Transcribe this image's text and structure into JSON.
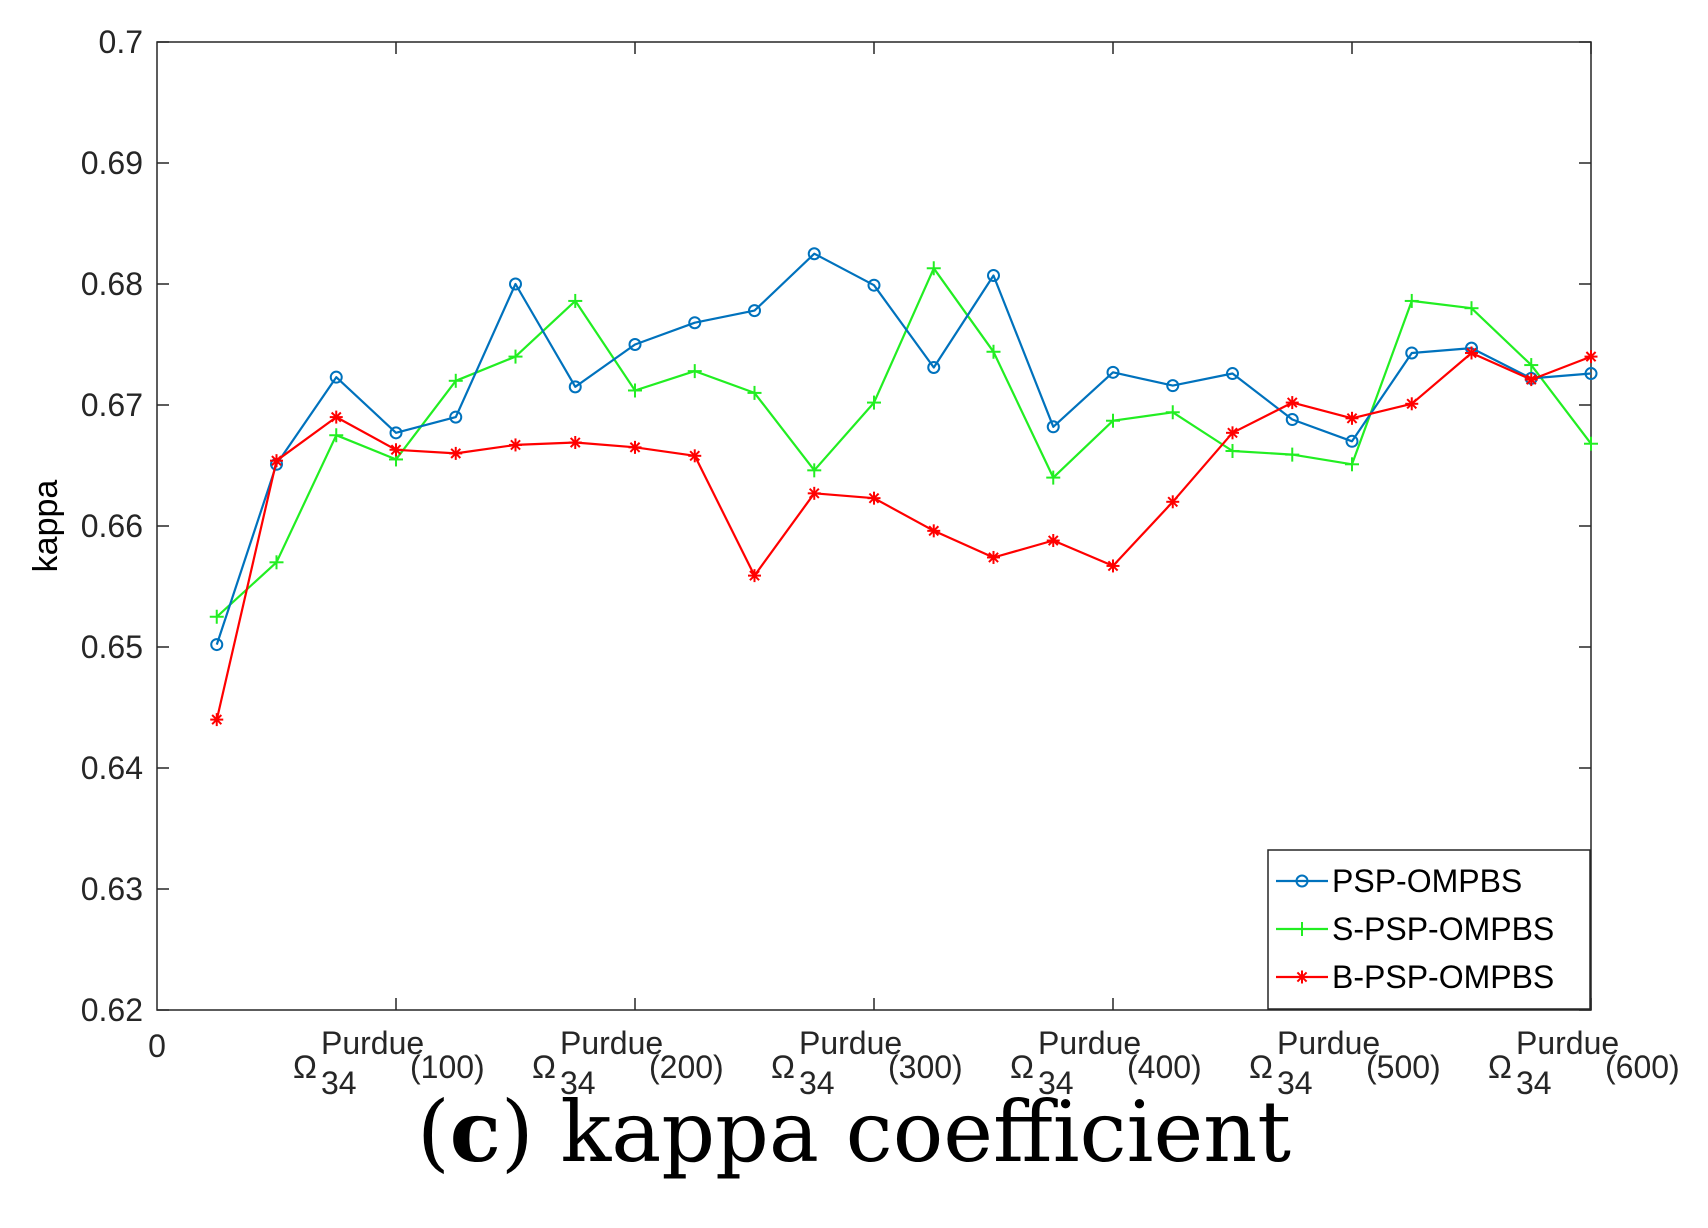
{
  "chart_data": {
    "type": "line",
    "ylabel": "kappa",
    "ylim": [
      0.62,
      0.7
    ],
    "yticks": [
      "0.62",
      "0.63",
      "0.64",
      "0.65",
      "0.66",
      "0.67",
      "0.68",
      "0.69",
      "0.7"
    ],
    "ytick_values": [
      0.62,
      0.63,
      0.64,
      0.65,
      0.66,
      0.67,
      0.68,
      0.69,
      0.7
    ],
    "xlim": [
      0,
      600
    ],
    "x_origin_label": "0",
    "xticks": [
      {
        "value": 100,
        "base": "Ω",
        "sub": "34",
        "sup": "Purdue",
        "arg": "(100)"
      },
      {
        "value": 200,
        "base": "Ω",
        "sub": "34",
        "sup": "Purdue",
        "arg": "(200)"
      },
      {
        "value": 300,
        "base": "Ω",
        "sub": "34",
        "sup": "Purdue",
        "arg": "(300)"
      },
      {
        "value": 400,
        "base": "Ω",
        "sub": "34",
        "sup": "Purdue",
        "arg": "(400)"
      },
      {
        "value": 500,
        "base": "Ω",
        "sub": "34",
        "sup": "Purdue",
        "arg": "(500)"
      },
      {
        "value": 600,
        "base": "Ω",
        "sub": "34",
        "sup": "Purdue",
        "arg": "(600)"
      }
    ],
    "x": [
      25,
      50,
      75,
      100,
      125,
      150,
      175,
      200,
      225,
      250,
      275,
      300,
      325,
      350,
      375,
      400,
      425,
      450,
      475,
      500,
      525,
      550,
      575,
      600
    ],
    "series": [
      {
        "name": "PSP-OMPBS",
        "color": "#0072BD",
        "marker": "circle",
        "values": [
          0.6502,
          0.6651,
          0.6723,
          0.6677,
          0.669,
          0.68,
          0.6715,
          0.675,
          0.6768,
          0.6778,
          0.6825,
          0.6799,
          0.6731,
          0.6807,
          0.6682,
          0.6727,
          0.6716,
          0.6726,
          0.6688,
          0.667,
          0.6743,
          0.6747,
          0.6722,
          0.6726
        ]
      },
      {
        "name": "S-PSP-OMPBS",
        "color": "#22EE22",
        "marker": "plus",
        "values": [
          0.6525,
          0.657,
          0.6675,
          0.6655,
          0.672,
          0.674,
          0.6786,
          0.6712,
          0.6728,
          0.671,
          0.6646,
          0.6702,
          0.6813,
          0.6744,
          0.664,
          0.6687,
          0.6694,
          0.6662,
          0.6659,
          0.6651,
          0.6786,
          0.678,
          0.6733,
          0.6668
        ]
      },
      {
        "name": "B-PSP-OMPBS",
        "color": "#FF0000",
        "marker": "asterisk",
        "values": [
          0.644,
          0.6654,
          0.669,
          0.6663,
          0.666,
          0.6667,
          0.6669,
          0.6665,
          0.6658,
          0.6559,
          0.6627,
          0.6623,
          0.6596,
          0.6574,
          0.6588,
          0.6567,
          0.662,
          0.6677,
          0.6702,
          0.6689,
          0.6701,
          0.6743,
          0.6721,
          0.674
        ]
      }
    ],
    "legend_location": "bottom-right",
    "grid": false
  },
  "caption": {
    "open_paren": "(",
    "letter": "c",
    "rest": ") kappa coefficient"
  }
}
